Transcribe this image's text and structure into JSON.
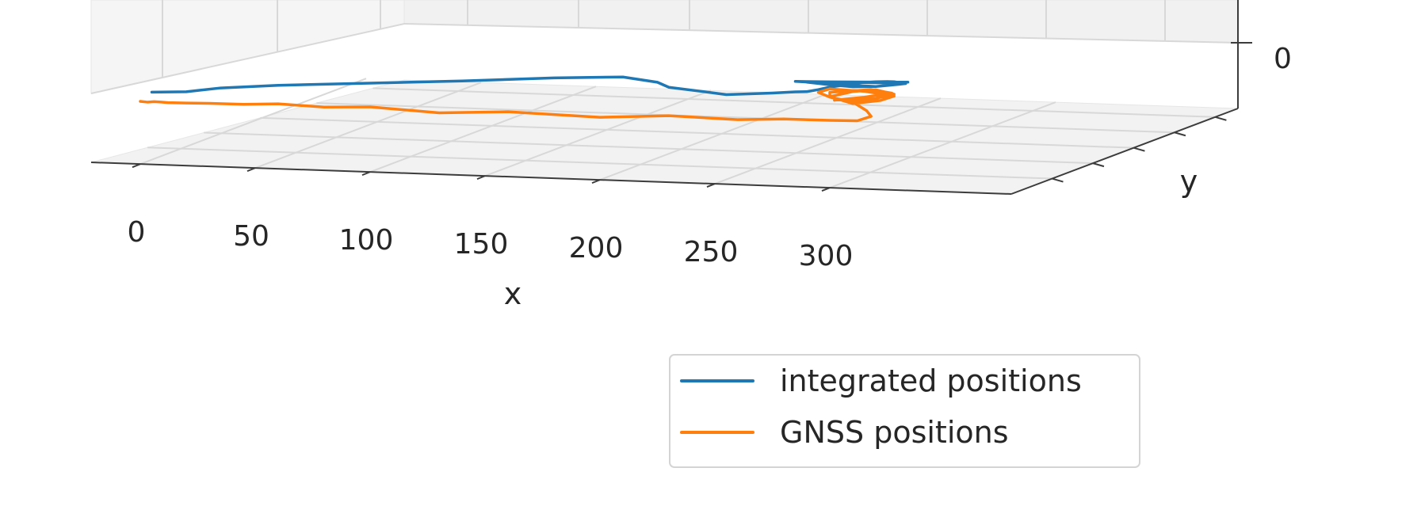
{
  "chart_data": {
    "type": "line",
    "projection": "3d",
    "title": "",
    "xlabel": "x",
    "ylabel": "y",
    "zlabel": "",
    "x_ticks": [
      "0",
      "50",
      "100",
      "150",
      "200",
      "250",
      "300"
    ],
    "z_ticks": [
      "0"
    ],
    "xlim": [
      -20,
      345
    ],
    "grid": true,
    "legend": {
      "placement": "bottom-center"
    },
    "series": [
      {
        "name": "integrated positions",
        "color": "#1f77b4",
        "x": [
          5,
          20,
          35,
          60,
          100,
          140,
          180,
          210,
          225,
          230,
          245,
          255,
          265,
          275,
          285,
          290,
          295,
          300,
          305,
          310,
          315,
          320,
          325,
          328,
          330,
          327,
          320,
          312,
          305,
          300,
          295,
          290,
          300,
          310,
          320,
          330,
          333,
          320,
          305,
          292,
          285,
          300,
          318,
          334
        ],
        "y_offset": [
          0,
          0,
          0,
          0,
          0,
          0,
          0,
          0,
          0,
          0,
          0,
          0,
          0,
          0,
          0,
          0,
          0,
          0,
          0,
          0,
          0,
          0,
          0,
          0,
          0,
          0,
          0,
          0,
          0,
          0,
          0,
          0,
          0,
          0,
          0,
          0,
          0,
          0,
          0,
          0,
          0,
          0,
          0,
          0
        ],
        "z": [
          0,
          0.3,
          1.3,
          2.2,
          3.2,
          4.2,
          5.4,
          6.0,
          5.1,
          4.1,
          3.4,
          2.9,
          3.2,
          3.5,
          3.9,
          4.0,
          4.5,
          5.1,
          5.5,
          6.0,
          6.3,
          6.5,
          6.6,
          6.6,
          6.5,
          5.9,
          5.5,
          5.6,
          5.9,
          6.1,
          6.1,
          6.0,
          5.6,
          5.3,
          5.5,
          6.1,
          6.3,
          6.3,
          6.2,
          6.0,
          6.1,
          6.2,
          6.4,
          6.6
        ]
      },
      {
        "name": "GNSS positions",
        "color": "#ff7f0e",
        "x": [
          0,
          3,
          6,
          9,
          12,
          20,
          30,
          45,
          60,
          80,
          100,
          130,
          160,
          200,
          230,
          260,
          280,
          300,
          312,
          318,
          316,
          310,
          300,
          295,
          300,
          315,
          328,
          322,
          310,
          300,
          310,
          320,
          328,
          320,
          308,
          300,
          300,
          318,
          327,
          315,
          302
        ],
        "y": [
          0,
          1,
          -1,
          1,
          0,
          -1,
          0,
          1,
          0,
          1,
          0,
          2,
          0,
          1,
          -1,
          0,
          -1,
          0,
          1,
          1,
          2,
          1,
          0,
          -1,
          -2,
          -1,
          0,
          1,
          2,
          1,
          0,
          -1,
          0,
          1,
          2,
          1,
          0,
          -1,
          0,
          1,
          2
        ],
        "z": [
          0,
          0.3,
          -0.4,
          0.4,
          -0.1,
          -0.5,
          0,
          0.4,
          0.3,
          0.3,
          0.2,
          0.2,
          0,
          -0.2,
          -0.3,
          -0.3,
          -0.3,
          0.1,
          0.6,
          1.6,
          3.2,
          4.5,
          5.0,
          5.5,
          5.9,
          6.0,
          5.6,
          5.0,
          4.6,
          5.5,
          6.3,
          6.4,
          6.0,
          5.4,
          5.0,
          5.4,
          6.0,
          6.4,
          6.2,
          5.6,
          5.2
        ]
      }
    ]
  }
}
